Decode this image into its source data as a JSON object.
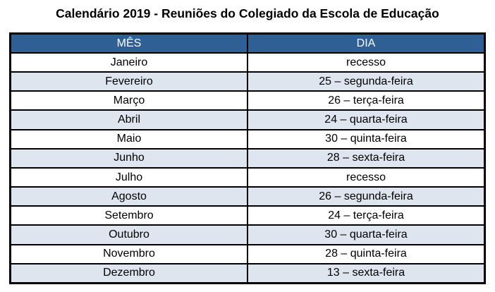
{
  "title": "Calendário 2019 - Reuniões do Colegiado da Escola de Educação",
  "table": {
    "headers": {
      "mes": "MÊS",
      "dia": "DIA"
    },
    "rows": [
      {
        "mes": "Janeiro",
        "dia": "recesso"
      },
      {
        "mes": "Fevereiro",
        "dia": "25 – segunda-feira"
      },
      {
        "mes": "Março",
        "dia": "26 – terça-feira"
      },
      {
        "mes": "Abril",
        "dia": "24 – quarta-feira"
      },
      {
        "mes": "Maio",
        "dia": "30 – quinta-feira"
      },
      {
        "mes": "Junho",
        "dia": "28 – sexta-feira"
      },
      {
        "mes": "Julho",
        "dia": "recesso"
      },
      {
        "mes": "Agosto",
        "dia": "26 – segunda-feira"
      },
      {
        "mes": "Setembro",
        "dia": "24 – terça-feira"
      },
      {
        "mes": "Outubro",
        "dia": "30 – quarta-feira"
      },
      {
        "mes": "Novembro",
        "dia": "28 – quinta-feira"
      },
      {
        "mes": "Dezembro",
        "dia": "13 – sexta-feira"
      }
    ],
    "colors": {
      "header_bg": "#2E6096",
      "header_text": "#FFFFFF",
      "row_bg": "#FFFFFF",
      "row_alt_bg": "#DEE5EF",
      "border": "#000000",
      "text": "#000000"
    }
  }
}
